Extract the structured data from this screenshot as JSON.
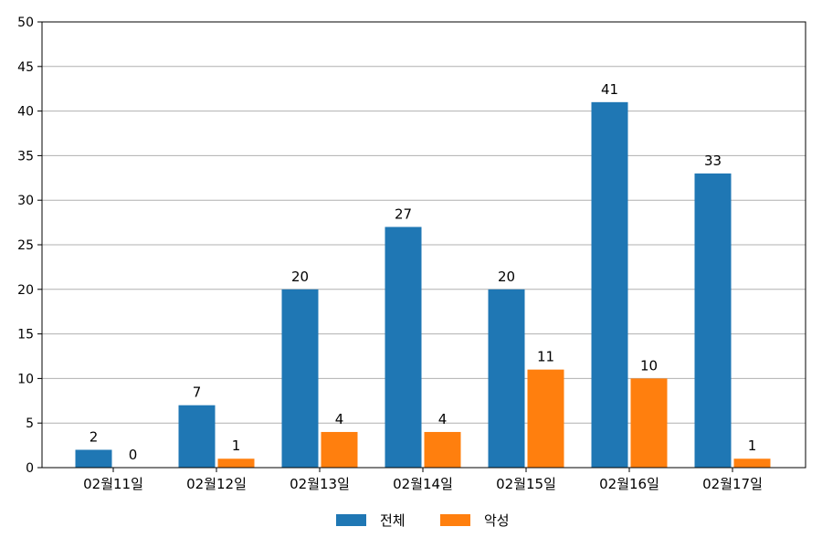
{
  "chart_data": {
    "type": "bar",
    "title": "",
    "xlabel": "",
    "ylabel": "",
    "categories": [
      "02월11일",
      "02월12일",
      "02월13일",
      "02월14일",
      "02월15일",
      "02월16일",
      "02월17일"
    ],
    "series": [
      {
        "name": "전체",
        "values": [
          2,
          7,
          20,
          27,
          20,
          41,
          33
        ],
        "color": "#1f77b4"
      },
      {
        "name": "악성",
        "values": [
          0,
          1,
          4,
          4,
          11,
          10,
          1
        ],
        "color": "#ff7f0e"
      }
    ],
    "ylim": [
      0,
      50
    ],
    "yticks": [
      0,
      5,
      10,
      15,
      20,
      25,
      30,
      35,
      40,
      45,
      50
    ],
    "grid": true,
    "legend_position": "bottom-center"
  }
}
